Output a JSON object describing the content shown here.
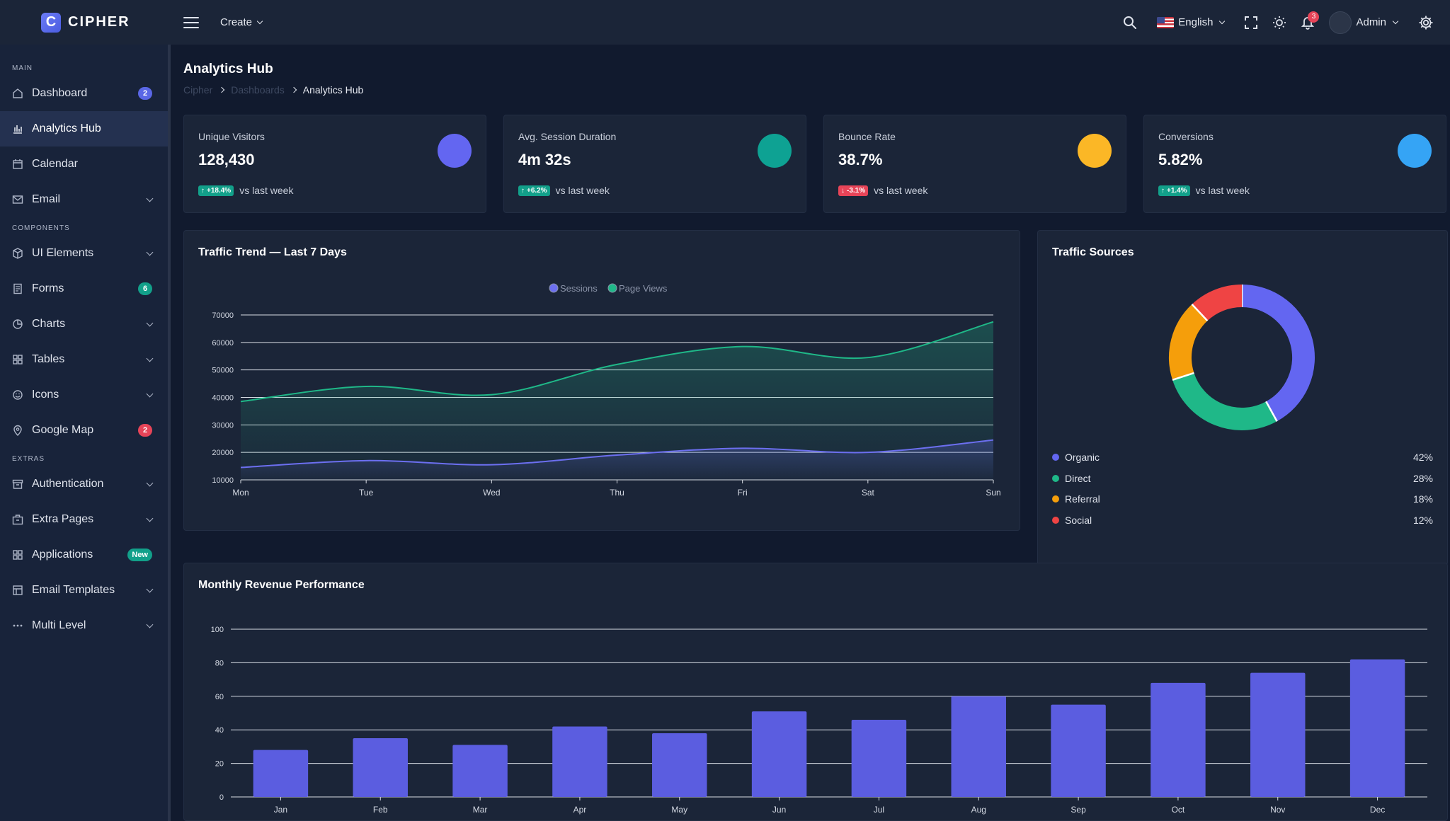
{
  "brand": {
    "logo_letter": "C",
    "name": "CIPHER"
  },
  "header": {
    "create_label": "Create",
    "language": "English",
    "notifications_count": "3",
    "user": "Admin"
  },
  "sidebar": {
    "sections": [
      {
        "label": "MAIN",
        "items": [
          {
            "label": "Dashboard",
            "icon": "home-icon",
            "badge": "2",
            "badge_color": "#5a67e6"
          },
          {
            "label": "Analytics Hub",
            "icon": "bar-chart-icon",
            "active": true
          },
          {
            "label": "Calendar",
            "icon": "calendar-icon"
          },
          {
            "label": "Email",
            "icon": "mail-icon",
            "chevron": true
          }
        ]
      },
      {
        "label": "COMPONENTS",
        "items": [
          {
            "label": "UI Elements",
            "icon": "box-icon",
            "chevron": true
          },
          {
            "label": "Forms",
            "icon": "file-text-icon",
            "badge": "6",
            "badge_color": "#12a08a"
          },
          {
            "label": "Charts",
            "icon": "pie-chart-icon",
            "chevron": true
          },
          {
            "label": "Tables",
            "icon": "grid-icon",
            "chevron": true
          },
          {
            "label": "Icons",
            "icon": "smile-icon",
            "chevron": true
          },
          {
            "label": "Google Map",
            "icon": "map-pin-icon",
            "badge": "2",
            "badge_color": "#e74458"
          }
        ]
      },
      {
        "label": "EXTRAS",
        "items": [
          {
            "label": "Authentication",
            "icon": "archive-icon",
            "chevron": true
          },
          {
            "label": "Extra Pages",
            "icon": "briefcase-icon",
            "chevron": true
          },
          {
            "label": "Applications",
            "icon": "apps-icon",
            "badge": "New",
            "badge_color": "#12a08a"
          },
          {
            "label": "Email Templates",
            "icon": "template-icon",
            "chevron": true
          },
          {
            "label": "Multi Level",
            "icon": "more-horizontal-icon",
            "chevron": true
          }
        ]
      }
    ]
  },
  "page": {
    "title": "Analytics Hub",
    "breadcrumb": [
      "Cipher",
      "Dashboards",
      "Analytics Hub"
    ]
  },
  "stats": [
    {
      "label": "Unique Visitors",
      "value": "128,430",
      "delta": "+18.4%",
      "direction": "up",
      "foot": "vs last week",
      "circle_color": "#6366f1",
      "delta_color": "#12a08a"
    },
    {
      "label": "Avg. Session Duration",
      "value": "4m 32s",
      "delta": "+6.2%",
      "direction": "up",
      "foot": "vs last week",
      "circle_color": "#0ea293",
      "delta_color": "#12a08a"
    },
    {
      "label": "Bounce Rate",
      "value": "38.7%",
      "delta": "-3.1%",
      "direction": "down",
      "foot": "vs last week",
      "circle_color": "#fbb726",
      "delta_color": "#e74458"
    },
    {
      "label": "Conversions",
      "value": "5.82%",
      "delta": "+1.4%",
      "direction": "up",
      "foot": "vs last week",
      "circle_color": "#35a4f5",
      "delta_color": "#12a08a"
    }
  ],
  "traffic_sources_title": "Traffic Sources",
  "chart_data": [
    {
      "type": "line",
      "title": "Traffic Trend — Last 7 Days",
      "categories": [
        "Mon",
        "Tue",
        "Wed",
        "Thu",
        "Fri",
        "Sat",
        "Sun"
      ],
      "series": [
        {
          "name": "Sessions",
          "color": "#6c6ff0",
          "values": [
            14500,
            17000,
            15500,
            19000,
            21500,
            20000,
            24500
          ]
        },
        {
          "name": "Page Views",
          "color": "#1fb888",
          "values": [
            38500,
            44000,
            41000,
            52000,
            58500,
            54500,
            67500
          ]
        }
      ],
      "ylim": [
        10000,
        70000
      ],
      "yticks": [
        10000,
        20000,
        30000,
        40000,
        50000,
        60000,
        70000
      ],
      "legend": "top",
      "grid": true
    },
    {
      "type": "pie",
      "title": "Traffic Sources",
      "donut": true,
      "slices": [
        {
          "name": "Organic",
          "value": 42,
          "label": "42%",
          "color": "#6366f1"
        },
        {
          "name": "Direct",
          "value": 28,
          "label": "28%",
          "color": "#1fb888"
        },
        {
          "name": "Referral",
          "value": 18,
          "label": "18%",
          "color": "#f59e0b"
        },
        {
          "name": "Social",
          "value": 12,
          "label": "12%",
          "color": "#ef4444"
        }
      ]
    },
    {
      "type": "bar",
      "title": "Monthly Revenue Performance",
      "categories": [
        "Jan",
        "Feb",
        "Mar",
        "Apr",
        "May",
        "Jun",
        "Jul",
        "Aug",
        "Sep",
        "Oct",
        "Nov",
        "Dec"
      ],
      "values": [
        28,
        35,
        31,
        42,
        38,
        51,
        46,
        60,
        55,
        68,
        74,
        82
      ],
      "ylim": [
        0,
        100
      ],
      "yticks": [
        0,
        20,
        40,
        60,
        80,
        100
      ],
      "color": "#5b5de0",
      "grid": true
    }
  ]
}
